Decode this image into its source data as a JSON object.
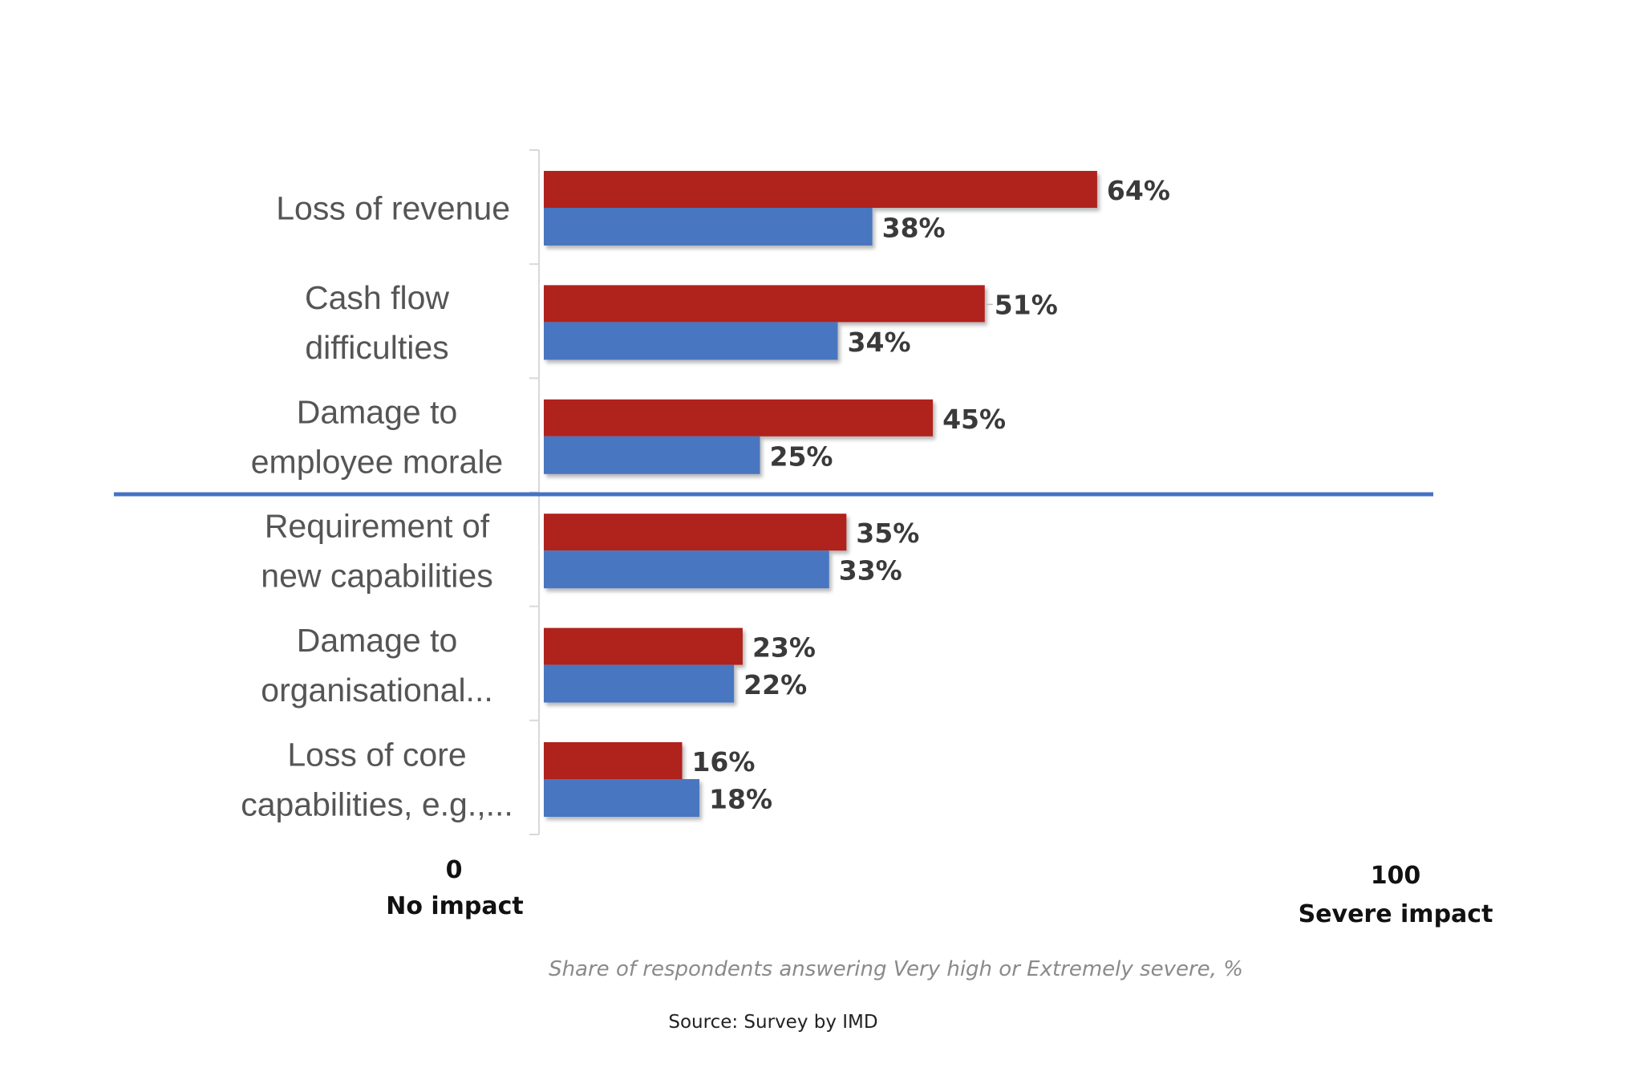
{
  "chart_data": {
    "type": "bar",
    "orientation": "horizontal",
    "categories": [
      [
        "Loss of revenue"
      ],
      [
        "Cash flow",
        "difficulties"
      ],
      [
        "Damage to",
        "employee morale"
      ],
      [
        "Requirement of",
        "new capabilities"
      ],
      [
        "Damage to",
        "organisational..."
      ],
      [
        "Loss of core",
        "capabilities, e.g.,..."
      ]
    ],
    "series": [
      {
        "name": "red",
        "color": "#b0221d",
        "values": [
          64,
          51,
          45,
          35,
          23,
          16
        ],
        "labels": [
          "64%",
          "51%",
          "45%",
          "35%",
          "23%",
          "16%"
        ]
      },
      {
        "name": "blue",
        "color": "#4a76c0",
        "values": [
          38,
          34,
          25,
          33,
          22,
          18
        ],
        "labels": [
          "38%",
          "34%",
          "25%",
          "33%",
          "22%",
          "18%"
        ]
      }
    ],
    "xlim": [
      0,
      100
    ],
    "separator_after_category": 3,
    "separator_color": "#4472c4",
    "grid": false,
    "legend": "none",
    "axis": {
      "min_value": "0",
      "min_label": "No impact",
      "max_value": "100",
      "max_label": "Severe impact"
    },
    "caption": "Share of respondents answering Very high or Extremely severe, %",
    "source": "Source: Survey by IMD"
  }
}
